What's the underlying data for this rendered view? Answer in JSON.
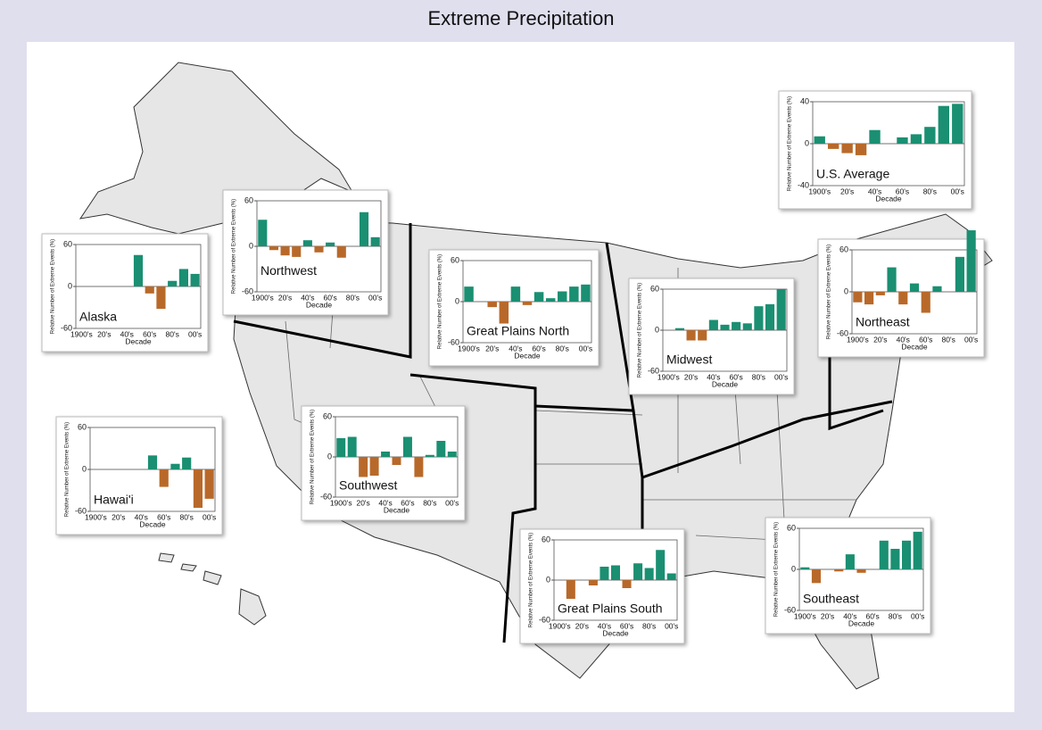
{
  "title": "Extreme Precipitation",
  "chart_data": [
    {
      "type": "bar",
      "title": "U.S. Average",
      "xlabel": "Decade",
      "ylabel": "Relative Number of Extreme Events (%)",
      "categories": [
        "1900's",
        null,
        "20's",
        null,
        "40's",
        null,
        "60's",
        null,
        "80's",
        null,
        "00's"
      ],
      "values": [
        7,
        -5,
        -9,
        -11,
        13,
        0,
        6,
        9,
        16,
        36,
        38
      ],
      "ylim": [
        -40,
        40
      ],
      "yticks": [
        -40,
        0,
        40
      ],
      "positive_color": "#1a8f72",
      "negative_color": "#b8692a"
    },
    {
      "type": "bar",
      "title": "Alaska",
      "xlabel": "Decade",
      "ylabel": "Relative Number of Extreme Events (%)",
      "categories": [
        "1900's",
        null,
        "20's",
        null,
        "40's",
        null,
        "60's",
        null,
        "80's",
        null,
        "00's"
      ],
      "values": [
        null,
        null,
        null,
        null,
        null,
        45,
        -10,
        -32,
        8,
        25,
        18
      ],
      "ylim": [
        -60,
        60
      ],
      "yticks": [
        -60,
        0,
        60
      ],
      "positive_color": "#1a8f72",
      "negative_color": "#b8692a"
    },
    {
      "type": "bar",
      "title": "Northwest",
      "xlabel": "Decade",
      "ylabel": "Relative Number of Extreme Events (%)",
      "categories": [
        "1900's",
        null,
        "20's",
        null,
        "40's",
        null,
        "60's",
        null,
        "80's",
        null,
        "00's"
      ],
      "values": [
        35,
        -5,
        -12,
        -14,
        8,
        -8,
        5,
        -15,
        0,
        45,
        12
      ],
      "ylim": [
        -60,
        60
      ],
      "yticks": [
        -60,
        0,
        60
      ],
      "positive_color": "#1a8f72",
      "negative_color": "#b8692a"
    },
    {
      "type": "bar",
      "title": "Great Plains North",
      "xlabel": "Decade",
      "ylabel": "Relative Number of Extreme Events (%)",
      "categories": [
        "1900's",
        null,
        "20's",
        null,
        "40's",
        null,
        "60's",
        null,
        "80's",
        null,
        "00's"
      ],
      "values": [
        22,
        0,
        -8,
        -32,
        22,
        -5,
        14,
        5,
        15,
        22,
        25
      ],
      "ylim": [
        -60,
        60
      ],
      "yticks": [
        -60,
        0,
        60
      ],
      "positive_color": "#1a8f72",
      "negative_color": "#b8692a"
    },
    {
      "type": "bar",
      "title": "Midwest",
      "xlabel": "Decade",
      "ylabel": "Relative Number of Extreme Events (%)",
      "categories": [
        "1900's",
        null,
        "20's",
        null,
        "40's",
        null,
        "60's",
        null,
        "80's",
        null,
        "00's"
      ],
      "values": [
        0,
        3,
        -15,
        -15,
        15,
        8,
        12,
        10,
        35,
        38,
        60
      ],
      "ylim": [
        -60,
        60
      ],
      "yticks": [
        -60,
        0,
        60
      ],
      "positive_color": "#1a8f72",
      "negative_color": "#b8692a"
    },
    {
      "type": "bar",
      "title": "Northeast",
      "xlabel": "Decade",
      "ylabel": "Relative Number of Extreme Events (%)",
      "categories": [
        "1900's",
        null,
        "20's",
        null,
        "40's",
        null,
        "60's",
        null,
        "80's",
        null,
        "00's"
      ],
      "values": [
        -15,
        -18,
        -5,
        35,
        -18,
        12,
        -30,
        8,
        0,
        50,
        88
      ],
      "ylim": [
        -60,
        60
      ],
      "yticks": [
        -60,
        0,
        60
      ],
      "positive_color": "#1a8f72",
      "negative_color": "#b8692a"
    },
    {
      "type": "bar",
      "title": "Hawai'i",
      "xlabel": "Decade",
      "ylabel": "Relative Number of Extreme Events (%)",
      "categories": [
        "1900's",
        null,
        "20's",
        null,
        "40's",
        null,
        "60's",
        null,
        "80's",
        null,
        "00's"
      ],
      "values": [
        null,
        null,
        null,
        null,
        null,
        20,
        -25,
        8,
        17,
        -55,
        -42
      ],
      "ylim": [
        -60,
        60
      ],
      "yticks": [
        -60,
        0,
        60
      ],
      "positive_color": "#1a8f72",
      "negative_color": "#b8692a"
    },
    {
      "type": "bar",
      "title": "Southwest",
      "xlabel": "Decade",
      "ylabel": "Relative Number of Extreme Events (%)",
      "categories": [
        "1900's",
        null,
        "20's",
        null,
        "40's",
        null,
        "60's",
        null,
        "80's",
        null,
        "00's"
      ],
      "values": [
        28,
        30,
        -30,
        -28,
        8,
        -12,
        30,
        -30,
        3,
        24,
        8
      ],
      "ylim": [
        -60,
        60
      ],
      "yticks": [
        -60,
        0,
        60
      ],
      "positive_color": "#1a8f72",
      "negative_color": "#b8692a"
    },
    {
      "type": "bar",
      "title": "Great Plains South",
      "xlabel": "Decade",
      "ylabel": "Relative Number of Extreme Events (%)",
      "categories": [
        "1900's",
        null,
        "20's",
        null,
        "40's",
        null,
        "60's",
        null,
        "80's",
        null,
        "00's"
      ],
      "values": [
        0,
        -28,
        0,
        -8,
        20,
        22,
        -12,
        25,
        18,
        45,
        10
      ],
      "ylim": [
        -60,
        60
      ],
      "yticks": [
        -60,
        0,
        60
      ],
      "positive_color": "#1a8f72",
      "negative_color": "#b8692a"
    },
    {
      "type": "bar",
      "title": "Southeast",
      "xlabel": "Decade",
      "ylabel": "Relative Number of Extreme Events (%)",
      "categories": [
        "1900's",
        null,
        "20's",
        null,
        "40's",
        null,
        "60's",
        null,
        "80's",
        null,
        "00's"
      ],
      "values": [
        3,
        -20,
        0,
        -3,
        22,
        -5,
        0,
        42,
        30,
        42,
        55
      ],
      "ylim": [
        -60,
        60
      ],
      "yticks": [
        -60,
        0,
        60
      ],
      "positive_color": "#1a8f72",
      "negative_color": "#b8692a"
    }
  ]
}
